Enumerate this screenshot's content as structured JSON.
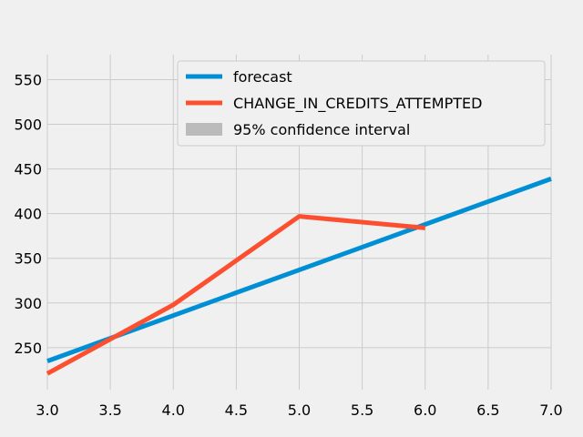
{
  "chart_data": {
    "type": "line",
    "title": "",
    "xlabel": "",
    "ylabel": "",
    "xlim": [
      3.0,
      7.0
    ],
    "ylim": [
      203,
      578
    ],
    "grid": true,
    "legend_position": "top-right",
    "x_ticks": [
      "3.0",
      "3.5",
      "4.0",
      "4.5",
      "5.0",
      "5.5",
      "6.0",
      "6.5",
      "7.0"
    ],
    "y_ticks": [
      "250",
      "300",
      "350",
      "400",
      "450",
      "500",
      "550"
    ],
    "series": [
      {
        "name": "forecast",
        "color": "#008fd5",
        "x": [
          3.0,
          7.0
        ],
        "y": [
          235,
          439
        ]
      },
      {
        "name": "CHANGE_IN_CREDITS_ATTEMPTED",
        "color": "#fc4f30",
        "x": [
          3.0,
          4.0,
          5.0,
          6.0
        ],
        "y": [
          221,
          298,
          397,
          384
        ]
      }
    ],
    "confidence_interval": {
      "name": "95% confidence interval",
      "color": "#bbbbbb"
    }
  }
}
